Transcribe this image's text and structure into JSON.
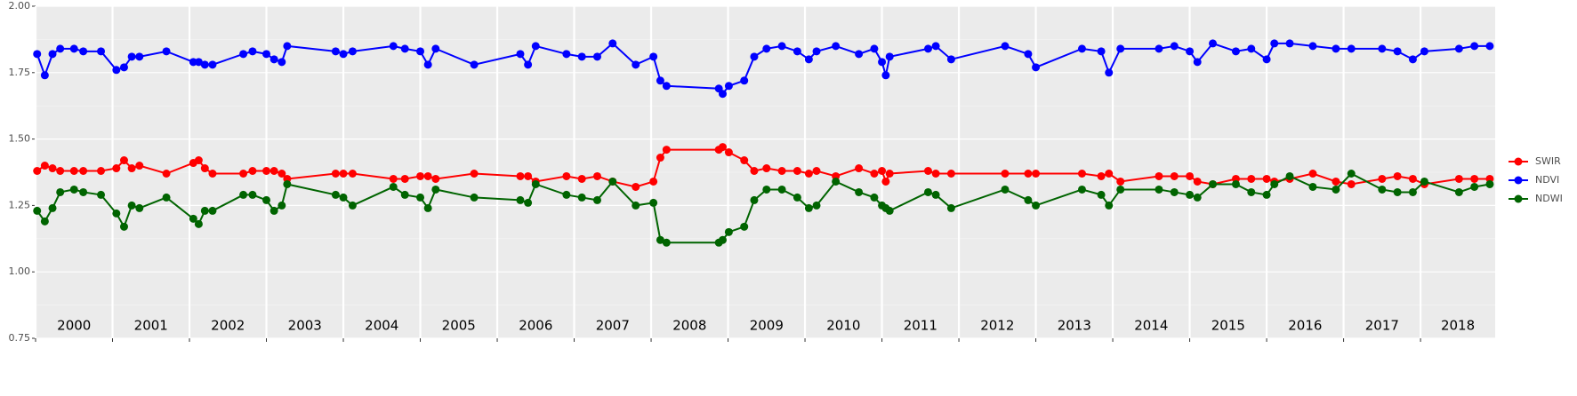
{
  "chart_data": {
    "type": "line",
    "x": [
      2000.02,
      2000.12,
      2000.22,
      2000.32,
      2000.5,
      2000.62,
      2000.85,
      2001.05,
      2001.15,
      2001.25,
      2001.35,
      2001.7,
      2002.05,
      2002.12,
      2002.2,
      2002.3,
      2002.7,
      2002.82,
      2003.0,
      2003.1,
      2003.2,
      2003.27,
      2003.9,
      2004.0,
      2004.12,
      2004.65,
      2004.8,
      2005.0,
      2005.1,
      2005.2,
      2005.7,
      2006.3,
      2006.4,
      2006.5,
      2006.9,
      2007.1,
      2007.3,
      2007.5,
      2007.8,
      2008.03,
      2008.12,
      2008.2,
      2008.88,
      2008.93,
      2009.01,
      2009.21,
      2009.34,
      2009.5,
      2009.7,
      2009.9,
      2010.05,
      2010.15,
      2010.4,
      2010.7,
      2010.9,
      2011.0,
      2011.05,
      2011.1,
      2011.6,
      2011.7,
      2011.9,
      2012.6,
      2012.9,
      2013.0,
      2013.6,
      2013.85,
      2013.95,
      2014.1,
      2014.6,
      2014.8,
      2015.0,
      2015.1,
      2015.3,
      2015.6,
      2015.8,
      2016.0,
      2016.1,
      2016.3,
      2016.6,
      2016.9,
      2017.1,
      2017.5,
      2017.7,
      2017.9,
      2018.05,
      2018.5,
      2018.7,
      2018.9
    ],
    "series": [
      {
        "name": "SWIR",
        "color": "#ff0000",
        "values": [
          1.38,
          1.4,
          1.39,
          1.38,
          1.38,
          1.38,
          1.38,
          1.39,
          1.42,
          1.39,
          1.4,
          1.37,
          1.41,
          1.42,
          1.39,
          1.37,
          1.37,
          1.38,
          1.38,
          1.38,
          1.37,
          1.35,
          1.37,
          1.37,
          1.37,
          1.35,
          1.35,
          1.36,
          1.36,
          1.35,
          1.37,
          1.36,
          1.36,
          1.34,
          1.36,
          1.35,
          1.36,
          1.34,
          1.32,
          1.34,
          1.43,
          1.46,
          1.46,
          1.47,
          1.45,
          1.42,
          1.38,
          1.39,
          1.38,
          1.38,
          1.37,
          1.38,
          1.36,
          1.39,
          1.37,
          1.38,
          1.34,
          1.37,
          1.38,
          1.37,
          1.37,
          1.37,
          1.37,
          1.37,
          1.37,
          1.36,
          1.37,
          1.34,
          1.36,
          1.36,
          1.36,
          1.34,
          1.33,
          1.35,
          1.35,
          1.35,
          1.34,
          1.35,
          1.37,
          1.34,
          1.33,
          1.35,
          1.36,
          1.35,
          1.33,
          1.35,
          1.35,
          1.35
        ]
      },
      {
        "name": "NDVI",
        "color": "#0000ff",
        "values": [
          1.82,
          1.74,
          1.82,
          1.84,
          1.84,
          1.83,
          1.83,
          1.76,
          1.77,
          1.81,
          1.81,
          1.83,
          1.79,
          1.79,
          1.78,
          1.78,
          1.82,
          1.83,
          1.82,
          1.8,
          1.79,
          1.85,
          1.83,
          1.82,
          1.83,
          1.85,
          1.84,
          1.83,
          1.78,
          1.84,
          1.78,
          1.82,
          1.78,
          1.85,
          1.82,
          1.81,
          1.81,
          1.86,
          1.78,
          1.81,
          1.72,
          1.7,
          1.69,
          1.67,
          1.7,
          1.72,
          1.81,
          1.84,
          1.85,
          1.83,
          1.8,
          1.83,
          1.85,
          1.82,
          1.84,
          1.79,
          1.74,
          1.81,
          1.84,
          1.85,
          1.8,
          1.85,
          1.82,
          1.77,
          1.84,
          1.83,
          1.75,
          1.84,
          1.84,
          1.85,
          1.83,
          1.79,
          1.86,
          1.83,
          1.84,
          1.8,
          1.86,
          1.86,
          1.85,
          1.84,
          1.84,
          1.84,
          1.83,
          1.8,
          1.83,
          1.84,
          1.85,
          1.85
        ]
      },
      {
        "name": "NDWI",
        "color": "#006400",
        "values": [
          1.23,
          1.19,
          1.24,
          1.3,
          1.31,
          1.3,
          1.29,
          1.22,
          1.17,
          1.25,
          1.24,
          1.28,
          1.2,
          1.18,
          1.23,
          1.23,
          1.29,
          1.29,
          1.27,
          1.23,
          1.25,
          1.33,
          1.29,
          1.28,
          1.25,
          1.32,
          1.29,
          1.28,
          1.24,
          1.31,
          1.28,
          1.27,
          1.26,
          1.33,
          1.29,
          1.28,
          1.27,
          1.34,
          1.25,
          1.26,
          1.12,
          1.11,
          1.11,
          1.12,
          1.15,
          1.17,
          1.27,
          1.31,
          1.31,
          1.28,
          1.24,
          1.25,
          1.34,
          1.3,
          1.28,
          1.25,
          1.24,
          1.23,
          1.3,
          1.29,
          1.24,
          1.31,
          1.27,
          1.25,
          1.31,
          1.29,
          1.25,
          1.31,
          1.31,
          1.3,
          1.29,
          1.28,
          1.33,
          1.33,
          1.3,
          1.29,
          1.33,
          1.36,
          1.32,
          1.31,
          1.37,
          1.31,
          1.3,
          1.3,
          1.34,
          1.3,
          1.32,
          1.33
        ]
      }
    ],
    "xlim": [
      2000,
      2018.97
    ],
    "xticks": [
      2000,
      2001,
      2002,
      2003,
      2004,
      2005,
      2006,
      2007,
      2008,
      2009,
      2010,
      2011,
      2012,
      2013,
      2014,
      2015,
      2016,
      2017,
      2018
    ],
    "ylim": [
      0.75,
      2.0
    ],
    "yticks": [
      0.75,
      {
        "value": 1.0,
        "label": "1.00"
      },
      1.25,
      {
        "value": 1.5,
        "label": "1.50"
      },
      1.75,
      {
        "value": 2.0,
        "label": "2.00"
      }
    ],
    "minor_yticks": [
      0.875,
      1.125,
      1.375,
      1.625,
      1.875
    ],
    "grid": true,
    "legend": "right"
  }
}
